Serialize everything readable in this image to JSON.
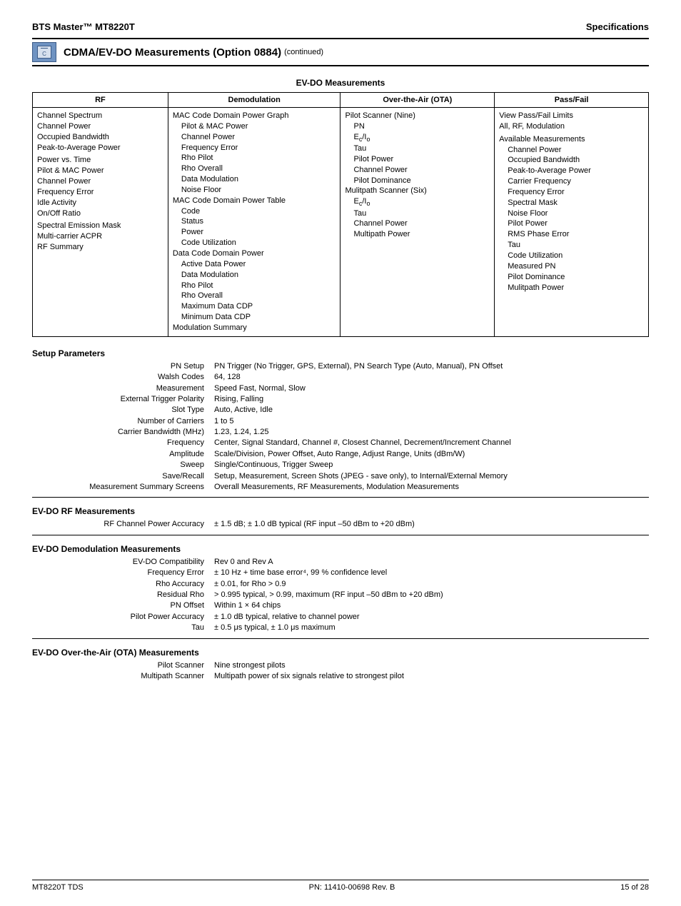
{
  "header": {
    "left": "BTS Master™ MT8220T",
    "right": "Specifications"
  },
  "section": {
    "title": "CDMA/EV-DO Measurements (Option 0884)",
    "continued": "(continued)",
    "icon_label": "C"
  },
  "table_title": "EV-DO Measurements",
  "columns": [
    "RF",
    "Demodulation",
    "Over-the-Air (OTA)",
    "Pass/Fail"
  ],
  "rf": {
    "items": [
      "Channel Spectrum",
      "Channel Power",
      "Occupied Bandwidth",
      "Peak-to-Average Power"
    ],
    "items2": [
      "Power vs. Time",
      "Pilot & MAC Power",
      "Channel Power",
      "Frequency Error",
      "Idle Activity",
      "On/Off Ratio"
    ],
    "items3": [
      "Spectral Emission Mask",
      "Multi-carrier ACPR",
      "RF Summary"
    ]
  },
  "demod": {
    "g1_title": "MAC Code Domain Power Graph",
    "g1": [
      "Pilot & MAC Power",
      "Channel Power",
      "Frequency Error",
      "Rho Pilot",
      "Rho Overall",
      "Data Modulation",
      "Noise Floor"
    ],
    "g2_title": "MAC Code Domain Power Table",
    "g2": [
      "Code",
      "Status",
      "Power",
      "Code Utilization"
    ],
    "g3_title": "Data Code Domain Power",
    "g3": [
      "Active Data Power",
      "Data Modulation",
      "Rho Pilot",
      "Rho Overall",
      "Maximum Data CDP",
      "Minimum Data CDP"
    ],
    "g4": "Modulation Summary"
  },
  "ota": {
    "g1_title": "Pilot Scanner (Nine)",
    "g1": [
      "PN",
      "E_c/I_o",
      "Tau",
      "Pilot Power",
      "Channel Power",
      "Pilot Dominance"
    ],
    "g2_title": "Mulitpath Scanner (Six)",
    "g2": [
      "E_c/I_o",
      "Tau",
      "Channel Power",
      "Multipath Power"
    ]
  },
  "pf": {
    "g1": [
      "View Pass/Fail Limits",
      "All, RF, Modulation"
    ],
    "g2_title": "Available Measurements",
    "g2": [
      "Channel Power",
      "Occupied Bandwidth",
      "Peak-to-Average Power",
      "Carrier Frequency",
      "Frequency Error",
      "Spectral Mask",
      "Noise Floor",
      "Pilot Power",
      "RMS Phase Error",
      "Tau",
      "Code Utilization",
      "Measured PN",
      "Pilot Dominance",
      "Mulitpath Power"
    ]
  },
  "setup": {
    "title": "Setup Parameters",
    "rows": [
      {
        "l": "PN Setup",
        "v": "PN Trigger (No Trigger, GPS, External), PN Search Type (Auto, Manual), PN Offset"
      },
      {
        "l": "Walsh Codes",
        "v": "64, 128"
      },
      {
        "l": "Measurement",
        "v": "Speed Fast, Normal, Slow"
      },
      {
        "l": "External Trigger Polarity",
        "v": "Rising, Falling"
      },
      {
        "l": "Slot Type",
        "v": "Auto, Active, Idle"
      },
      {
        "l": "Number of Carriers",
        "v": "1 to 5"
      },
      {
        "l": "Carrier Bandwidth (MHz)",
        "v": "1.23, 1.24, 1.25"
      },
      {
        "l": "Frequency",
        "v": "Center, Signal Standard, Channel #, Closest Channel, Decrement/Increment Channel"
      },
      {
        "l": "Amplitude",
        "v": "Scale/Division, Power Offset, Auto Range, Adjust Range, Units (dBm/W)"
      },
      {
        "l": "Sweep",
        "v": "Single/Continuous, Trigger Sweep"
      },
      {
        "l": "Save/Recall",
        "v": "Setup, Measurement, Screen Shots (JPEG - save only), to Internal/External Memory"
      },
      {
        "l": "Measurement Summary Screens",
        "v": "Overall Measurements, RF Measurements, Modulation Measurements"
      }
    ]
  },
  "rfmeas": {
    "title": "EV-DO RF Measurements",
    "rows": [
      {
        "l": "RF Channel Power Accuracy",
        "v": "± 1.5 dB; ± 1.0 dB typical (RF input –50 dBm to +20 dBm)"
      }
    ]
  },
  "demodmeas": {
    "title": "EV-DO Demodulation Measurements",
    "rows": [
      {
        "l": "EV-DO Compatibility",
        "v": "Rev 0 and Rev A"
      },
      {
        "l": "Frequency Error",
        "v": "± 10 Hz + time base error⁴, 99 % confidence level"
      },
      {
        "l": "Rho Accuracy",
        "v": "± 0.01, for Rho > 0.9"
      },
      {
        "l": "Residual Rho",
        "v": "> 0.995 typical, > 0.99, maximum (RF input –50 dBm to +20 dBm)"
      },
      {
        "l": "PN Offset",
        "v": "Within 1 × 64 chips"
      },
      {
        "l": "Pilot Power Accuracy",
        "v": "± 1.0 dB typical, relative to channel power"
      },
      {
        "l": "Tau",
        "v": "± 0.5 μs typical, ± 1.0 μs maximum"
      }
    ]
  },
  "otameas": {
    "title": "EV-DO Over-the-Air (OTA) Measurements",
    "rows": [
      {
        "l": "Pilot Scanner",
        "v": "Nine strongest pilots"
      },
      {
        "l": "Multipath Scanner",
        "v": "Multipath power of six signals relative to strongest pilot"
      }
    ]
  },
  "footer": {
    "left": "MT8220T TDS",
    "center": "PN: 11410-00698  Rev. B",
    "right": "15 of 28"
  }
}
